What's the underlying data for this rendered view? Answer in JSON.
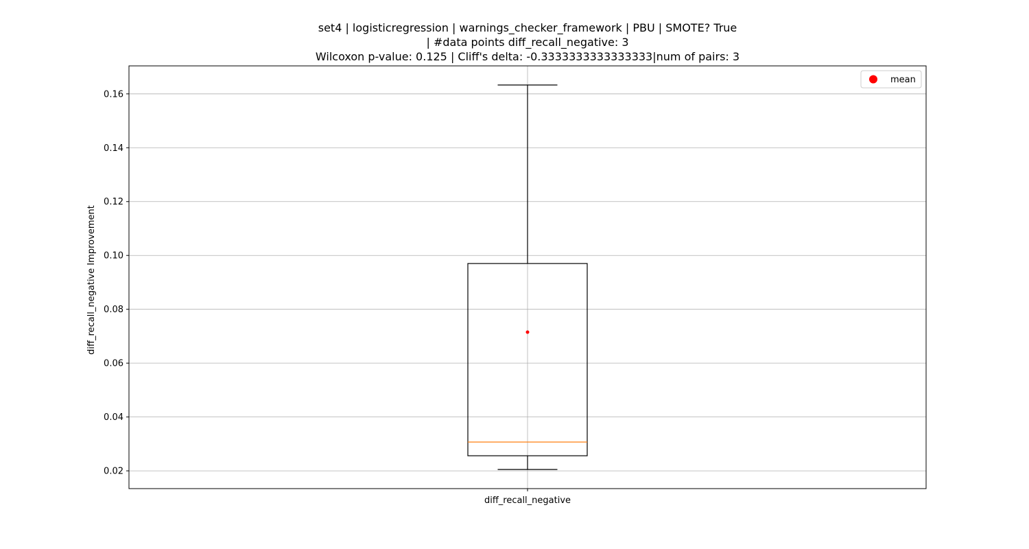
{
  "chart_data": {
    "type": "box",
    "title_lines": [
      "set4 | logisticregression | warnings_checker_framework | PBU | SMOTE? True",
      "| #data points diff_recall_negative: 3",
      "Wilcoxon p-value: 0.125 | Cliff's delta: -0.3333333333333333|num of pairs: 3"
    ],
    "ylabel": "diff_recall_negative Improvement",
    "xlabel": "",
    "categories": [
      "diff_recall_negative"
    ],
    "ylim": [
      0.0134,
      0.1704
    ],
    "yticks": [
      0.02,
      0.04,
      0.06,
      0.08,
      0.1,
      0.12,
      0.14,
      0.16
    ],
    "ytick_labels": [
      "0.02",
      "0.04",
      "0.06",
      "0.08",
      "0.10",
      "0.12",
      "0.14",
      "0.16"
    ],
    "boxes": [
      {
        "category": "diff_recall_negative",
        "whisker_low": 0.0205,
        "q1": 0.0256,
        "median": 0.0307,
        "q3": 0.097,
        "whisker_high": 0.1633,
        "mean": 0.0715
      }
    ],
    "grid": true,
    "legend": {
      "placement": "top-right",
      "entries": [
        {
          "label": "mean",
          "color": "#ff0000",
          "marker": "dot"
        }
      ]
    },
    "colors": {
      "box": "#000000",
      "median": "#ff7f0e",
      "mean": "#ff0000",
      "grid": "#b0b0b0"
    }
  }
}
